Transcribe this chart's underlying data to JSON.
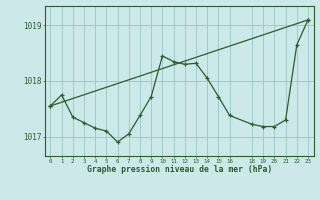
{
  "line1_x": [
    0,
    1,
    2,
    3,
    4,
    5,
    6,
    7,
    8,
    9,
    10,
    11,
    12,
    13,
    14,
    15,
    16,
    18,
    19,
    20,
    21,
    22,
    23
  ],
  "line1_y": [
    1017.55,
    1017.75,
    1017.35,
    1017.25,
    1017.15,
    1017.1,
    1016.9,
    1017.05,
    1017.38,
    1017.72,
    1018.45,
    1018.35,
    1018.3,
    1018.32,
    1018.05,
    1017.72,
    1017.38,
    1017.22,
    1017.18,
    1017.18,
    1017.3,
    1018.65,
    1019.1
  ],
  "trend_x": [
    0,
    23
  ],
  "trend_y": [
    1017.55,
    1019.1
  ],
  "line_color": "#2a5e2a",
  "bg_color": "#cce8e8",
  "grid_color": "#96c8c8",
  "axis_color": "#2a5e2a",
  "xlabel": "Graphe pression niveau de la mer (hPa)",
  "yticks": [
    1017,
    1018,
    1019
  ],
  "xtick_vals": [
    0,
    1,
    2,
    3,
    4,
    5,
    6,
    7,
    8,
    9,
    10,
    11,
    12,
    13,
    14,
    15,
    16,
    18,
    19,
    20,
    21,
    22,
    23
  ],
  "ylim": [
    1016.65,
    1019.35
  ],
  "xlim": [
    -0.5,
    23.5
  ]
}
